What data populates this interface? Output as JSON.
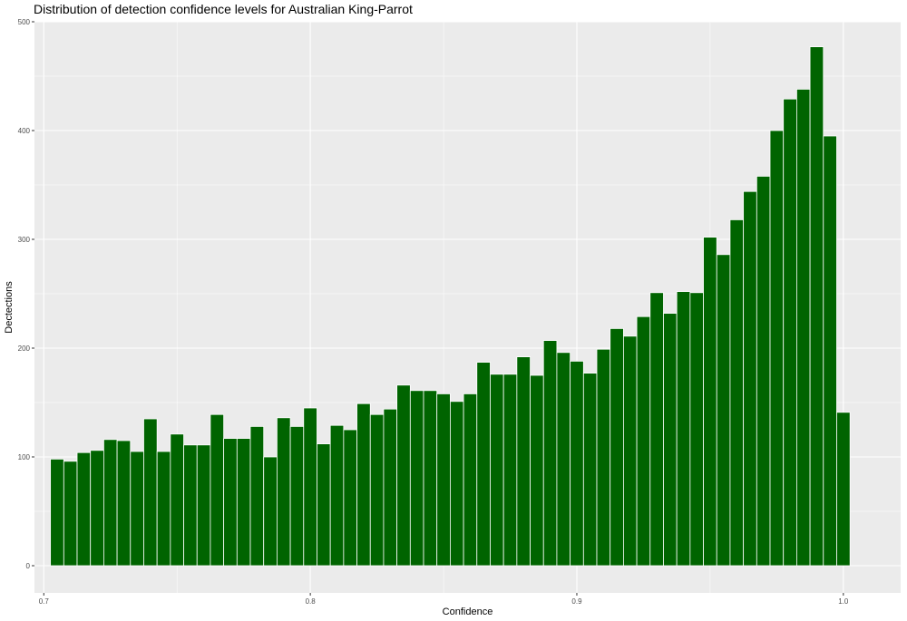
{
  "chart_data": {
    "type": "bar",
    "title": "Distribution of detection confidence levels for Australian King-Parrot",
    "xlabel": "Confidence",
    "ylabel": "Dectections",
    "xlim": [
      0.6965,
      1.0215
    ],
    "ylim": [
      -25,
      500
    ],
    "x_ticks": [
      0.7,
      0.8,
      0.9,
      1.0
    ],
    "x_tick_labels": [
      "0.7",
      "0.8",
      "0.9",
      "1.0"
    ],
    "y_ticks": [
      0,
      100,
      200,
      300,
      400,
      500
    ],
    "y_tick_labels": [
      "0",
      "100",
      "200",
      "300",
      "400",
      "500"
    ],
    "bin_start": 0.7025,
    "bin_width": 0.005,
    "values": [
      98,
      96,
      104,
      106,
      116,
      115,
      105,
      135,
      105,
      121,
      111,
      111,
      139,
      117,
      117,
      128,
      100,
      136,
      128,
      145,
      112,
      129,
      125,
      149,
      139,
      144,
      166,
      161,
      161,
      158,
      151,
      158,
      187,
      176,
      176,
      192,
      175,
      207,
      196,
      188,
      177,
      199,
      218,
      211,
      229,
      251,
      232,
      252,
      251,
      302,
      286,
      318,
      344,
      358,
      400,
      429,
      438,
      477,
      395,
      141
    ],
    "grid": true,
    "legend": "none",
    "colors": {
      "bar_fill": "#006400",
      "bar_outline": "#ffffff",
      "panel_background": "#ebebeb",
      "grid_major": "#ffffff",
      "page_background": "#ffffff"
    }
  }
}
